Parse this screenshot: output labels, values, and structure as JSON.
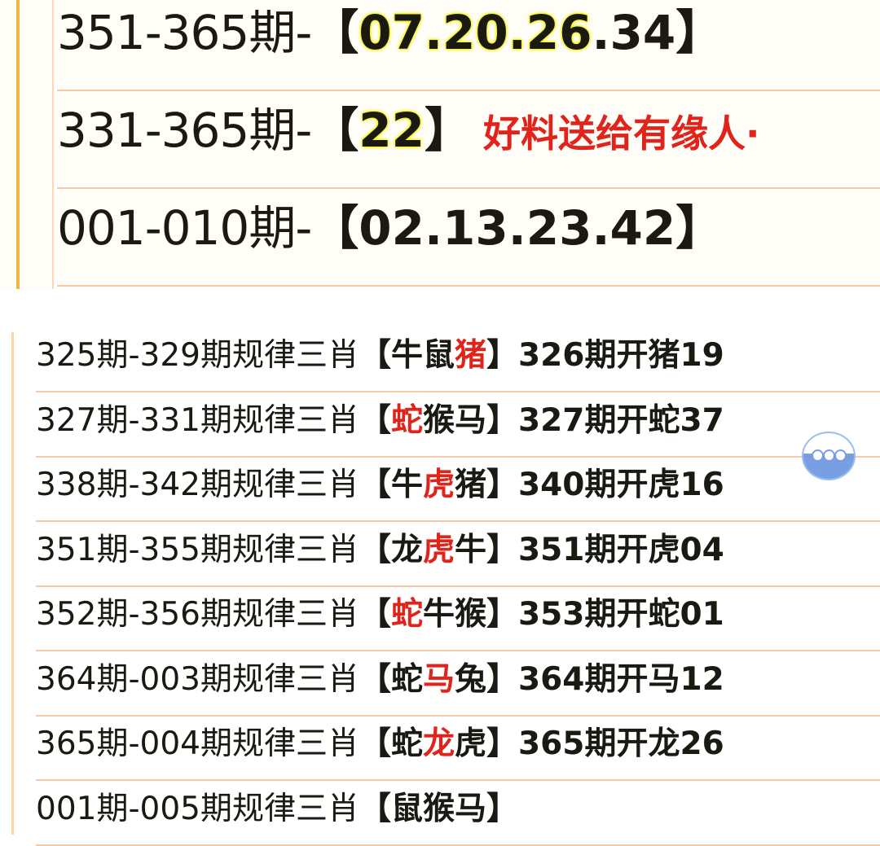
{
  "top_rows": [
    {
      "prefix": "351-365期-",
      "open": "【",
      "parts": [
        {
          "t": "07.20.",
          "hl": true
        },
        {
          "t": "26",
          "hl": true
        },
        {
          "t": ".34",
          "hl": false
        }
      ],
      "close": "】",
      "note": ""
    },
    {
      "prefix": "331-365期-",
      "open": "【",
      "parts": [
        {
          "t": "22",
          "hl": true
        }
      ],
      "close": "】",
      "note": "好料送给有缘人·"
    },
    {
      "prefix": "001-010期-",
      "open": "【",
      "parts": [
        {
          "t": "02.13.23.42",
          "hl": false
        }
      ],
      "close": "】",
      "note": ""
    }
  ],
  "bottom_rows": [
    {
      "prefix": "325期-329期规律三肖",
      "zodiac": [
        "牛",
        "鼠",
        "猪"
      ],
      "red_index": 2,
      "result": "326期开猪19"
    },
    {
      "prefix": "327期-331期规律三肖",
      "zodiac": [
        "蛇",
        "猴",
        "马"
      ],
      "red_index": 0,
      "result": "327期开蛇37"
    },
    {
      "prefix": "338期-342期规律三肖",
      "zodiac": [
        "牛",
        "虎",
        "猪"
      ],
      "red_index": 1,
      "result": "340期开虎16"
    },
    {
      "prefix": "351期-355期规律三肖",
      "zodiac": [
        "龙",
        "虎",
        "牛"
      ],
      "red_index": 1,
      "result": "351期开虎04"
    },
    {
      "prefix": "352期-356期规律三肖",
      "zodiac": [
        "蛇",
        "牛",
        "猴"
      ],
      "red_index": 0,
      "result": "353期开蛇01"
    },
    {
      "prefix": "364期-003期规律三肖",
      "zodiac": [
        "蛇",
        "马",
        "兔"
      ],
      "red_index": 1,
      "result": "364期开马12"
    },
    {
      "prefix": "365期-004期规律三肖",
      "zodiac": [
        "蛇",
        "龙",
        "虎"
      ],
      "red_index": 1,
      "result": "365期开龙26"
    },
    {
      "prefix": "001期-005期规律三肖",
      "zodiac": [
        "鼠",
        "猴",
        "马"
      ],
      "red_index": -1,
      "result": ""
    }
  ],
  "bracket": {
    "open": "【",
    "close": "】"
  },
  "icons": {
    "floating": "chat-bubble-icon"
  },
  "colors": {
    "red": "#e0241b",
    "highlight": "#f5f000",
    "line": "#f6c9a8"
  }
}
